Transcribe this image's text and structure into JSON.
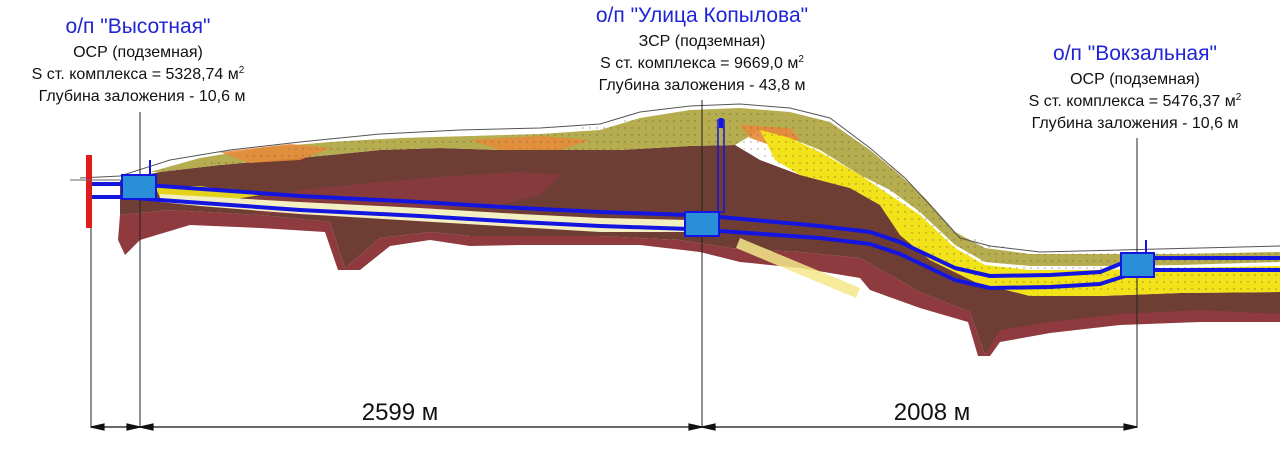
{
  "stations": [
    {
      "name": "о/п \"Высотная\"",
      "type": "ОСР (подземная)",
      "area_prefix": "S ст. комплекса = 5328,74 м",
      "area_sup": "2",
      "depth": "Глубина заложения - 10,6 м"
    },
    {
      "name": "о/п \"Улица Копылова\"",
      "type": "ЗСР (подземная)",
      "area_prefix": "S ст. комплекса = 9669,0 м",
      "area_sup": "2",
      "depth": "Глубина заложения - 43,8 м"
    },
    {
      "name": "о/п \"Вокзальная\"",
      "type": "ОСР (подземная)",
      "area_prefix": "S ст. комплекса = 5476,37 м",
      "area_sup": "2",
      "depth": "Глубина заложения - 10,6 м"
    }
  ],
  "distances": [
    {
      "label": "2599 м"
    },
    {
      "label": "2008 м"
    }
  ],
  "colors": {
    "station_name": "#1f24d6",
    "tunnel": "#1515e0",
    "station_box": "#2a8fd9",
    "portal": "#e01b1b",
    "layer_dark_brown": "#6e3d34",
    "layer_red_brown": "#8e3a3f",
    "layer_olive": "#b5ad4f",
    "layer_yellow": "#f2e21a",
    "layer_orange": "#e8893a",
    "layer_pale": "#f3efc0"
  }
}
